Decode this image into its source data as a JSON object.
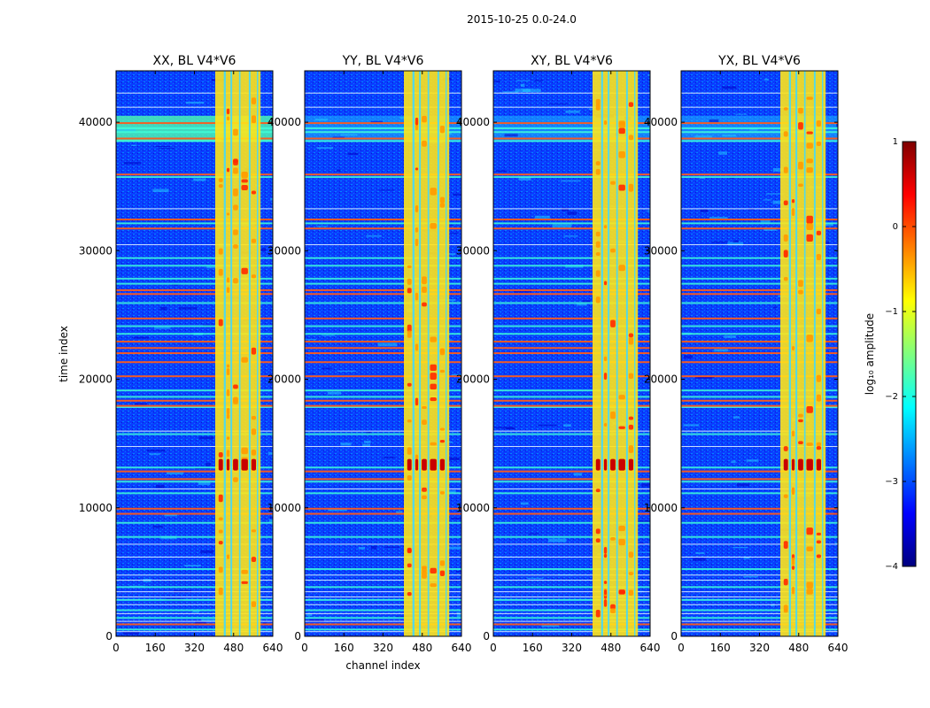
{
  "figure_title": "2015-10-25 0.0-24.0",
  "colors": {
    "colormap": [
      "#00007f",
      "#0000ff",
      "#007fff",
      "#00ffff",
      "#7fff7f",
      "#ffff00",
      "#ff7f00",
      "#ff0000",
      "#7f0000"
    ]
  },
  "chart_data": [
    {
      "type": "heatmap",
      "title": "XX, BL V4*V6",
      "xlabel": "",
      "ylabel": "time index",
      "xlim": [
        0,
        640
      ],
      "ylim": [
        0,
        44000
      ],
      "xticks": [
        0,
        160,
        320,
        480,
        640
      ],
      "xtick_labels": [
        "0",
        "160",
        "320",
        "480",
        "640"
      ],
      "yticks": [
        0,
        10000,
        20000,
        30000,
        40000
      ],
      "ytick_labels": [
        "0",
        "10000",
        "20000",
        "30000",
        "40000"
      ]
    },
    {
      "type": "heatmap",
      "title": "YY, BL V4*V6",
      "xlabel": "channel index",
      "ylabel": "",
      "xlim": [
        0,
        640
      ],
      "ylim": [
        0,
        44000
      ],
      "xticks": [
        0,
        160,
        320,
        480,
        640
      ],
      "xtick_labels": [
        "0",
        "160",
        "320",
        "480",
        "640"
      ],
      "yticks": [
        0,
        10000,
        20000,
        30000,
        40000
      ],
      "ytick_labels": [
        "0",
        "10000",
        "20000",
        "30000",
        "40000"
      ]
    },
    {
      "type": "heatmap",
      "title": "XY, BL V4*V6",
      "xlabel": "",
      "ylabel": "",
      "xlim": [
        0,
        640
      ],
      "ylim": [
        0,
        44000
      ],
      "xticks": [
        0,
        160,
        320,
        480,
        640
      ],
      "xtick_labels": [
        "0",
        "160",
        "320",
        "480",
        "640"
      ],
      "yticks": [
        0,
        10000,
        20000,
        30000,
        40000
      ],
      "ytick_labels": [
        "0",
        "10000",
        "20000",
        "30000",
        "40000"
      ]
    },
    {
      "type": "heatmap",
      "title": "YX, BL V4*V6",
      "xlabel": "",
      "ylabel": "",
      "xlim": [
        0,
        640
      ],
      "ylim": [
        0,
        44000
      ],
      "xticks": [
        0,
        160,
        320,
        480,
        640
      ],
      "xtick_labels": [
        "0",
        "160",
        "320",
        "480",
        "640"
      ],
      "yticks": [
        0,
        10000,
        20000,
        30000,
        40000
      ],
      "ytick_labels": [
        "0",
        "10000",
        "20000",
        "30000",
        "40000"
      ]
    }
  ],
  "colorbar": {
    "label": "log₁₀ amplitude",
    "range": [
      -4,
      1
    ],
    "ticks": [
      1,
      0,
      -1,
      -2,
      -3,
      -4
    ],
    "tick_labels": [
      "1",
      "0",
      "−1",
      "−2",
      "−3",
      "−4"
    ]
  }
}
